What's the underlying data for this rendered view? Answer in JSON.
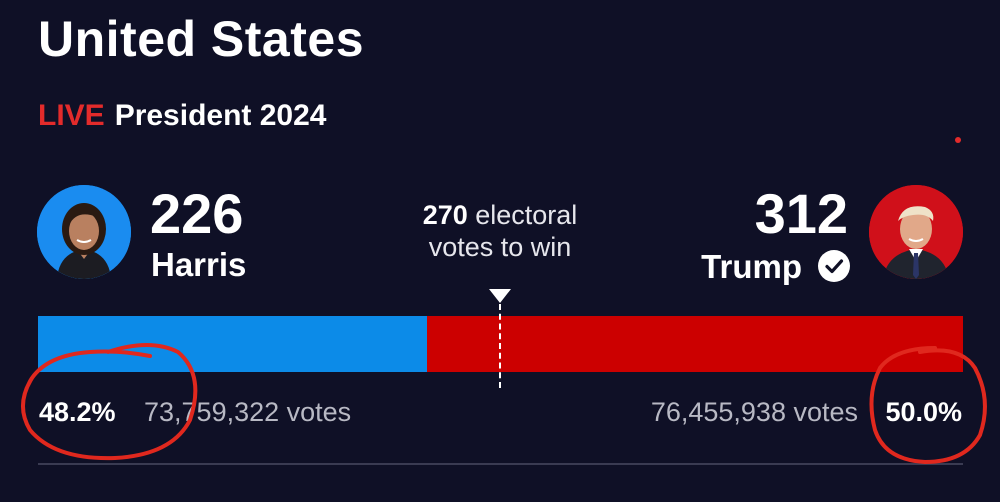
{
  "header": {
    "title": "United States",
    "live_label": "LIVE",
    "race_label": "President 2024"
  },
  "threshold": {
    "number": "270",
    "line1_rest": " electoral",
    "line2": "votes to win"
  },
  "candidates": {
    "harris": {
      "name": "Harris",
      "electoral_votes": "226",
      "vote_share_label": "48.2%",
      "vote_share": 0.482,
      "popular_votes": "73,759,322 votes",
      "color": "#0c8be8"
    },
    "trump": {
      "name": "Trump",
      "electoral_votes": "312",
      "vote_share_label": "50.0%",
      "vote_share": 0.5,
      "popular_votes": "76,455,938 votes",
      "color": "#cc0000",
      "winner": true
    }
  },
  "electoral_bar": {
    "total": 538,
    "to_win": 270,
    "harris": 226,
    "trump": 312
  },
  "icons": {
    "winner": "check-circle-icon",
    "live_dot": "live-dot-icon"
  },
  "annotation_color": "#e0281e"
}
